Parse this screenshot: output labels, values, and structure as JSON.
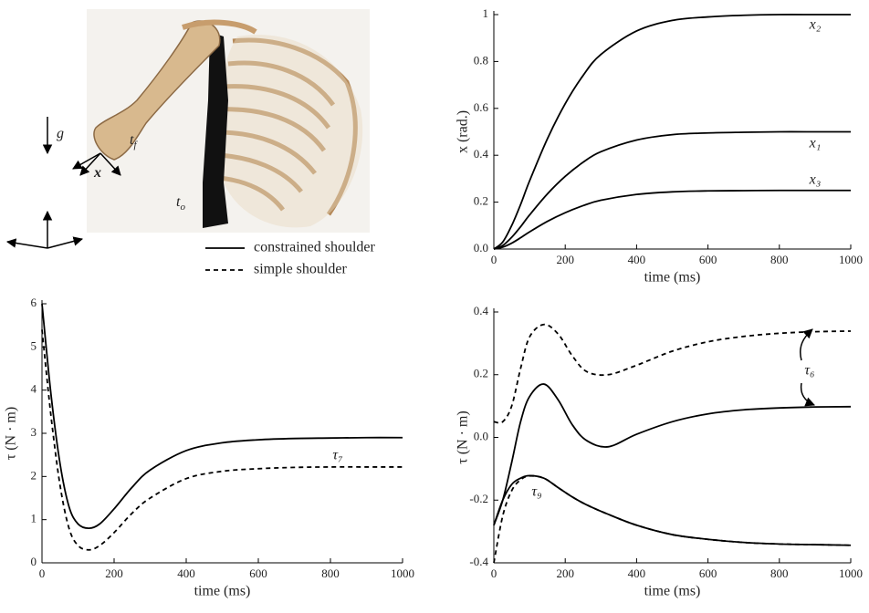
{
  "illustration": {
    "labels": [
      {
        "base": "g",
        "sub": ""
      },
      {
        "base": "t",
        "sub": "f"
      },
      {
        "base": "x",
        "sub": ""
      },
      {
        "base": "t",
        "sub": "o"
      }
    ]
  },
  "chart_data": [
    {
      "type": "line",
      "ylabel": "x (rad.)",
      "xlabel": "time (ms)",
      "color": "#000000",
      "x": [
        0,
        25,
        50,
        75,
        100,
        150,
        200,
        250,
        300,
        400,
        500,
        600,
        700,
        800,
        900,
        1000
      ],
      "series": [
        {
          "name": "x₂",
          "line_style": "solid",
          "values": [
            0,
            0.03,
            0.1,
            0.19,
            0.29,
            0.47,
            0.62,
            0.74,
            0.83,
            0.93,
            0.975,
            0.99,
            0.997,
            1,
            1,
            1
          ]
        },
        {
          "name": "x₁",
          "line_style": "solid",
          "values": [
            0,
            0.015,
            0.05,
            0.095,
            0.145,
            0.235,
            0.31,
            0.37,
            0.415,
            0.465,
            0.488,
            0.495,
            0.498,
            0.5,
            0.5,
            0.5
          ]
        },
        {
          "name": "x₃",
          "line_style": "solid",
          "values": [
            0,
            0.008,
            0.025,
            0.048,
            0.073,
            0.118,
            0.155,
            0.185,
            0.208,
            0.233,
            0.244,
            0.248,
            0.249,
            0.25,
            0.25,
            0.25
          ]
        }
      ],
      "xlim": [
        0,
        1000
      ],
      "xticks": [
        0,
        200,
        400,
        600,
        800,
        1000
      ],
      "ylim": [
        0,
        1
      ],
      "yticks": [
        {
          "value": 0,
          "label": "0.0"
        },
        0.2,
        0.4,
        0.6,
        0.8,
        1
      ]
    },
    {
      "type": "line",
      "ylabel": "τ (N · m)",
      "xlabel": "time (ms)",
      "color": "#000000",
      "legend": true,
      "annotations": [
        "τ₇"
      ],
      "x": [
        0,
        25,
        50,
        75,
        100,
        130,
        160,
        200,
        250,
        300,
        400,
        500,
        600,
        700,
        800,
        900,
        1000
      ],
      "series": [
        {
          "name": "constrained shoulder",
          "line_style": "solid",
          "values": [
            6,
            3.9,
            2.3,
            1.3,
            0.9,
            0.8,
            0.9,
            1.25,
            1.75,
            2.15,
            2.6,
            2.78,
            2.85,
            2.88,
            2.89,
            2.9,
            2.9
          ]
        },
        {
          "name": "simple shoulder",
          "line_style": "dashed",
          "values": [
            5.4,
            3.4,
            1.8,
            0.8,
            0.4,
            0.3,
            0.4,
            0.7,
            1.15,
            1.5,
            1.95,
            2.12,
            2.18,
            2.21,
            2.22,
            2.22,
            2.22
          ]
        }
      ],
      "xlim": [
        0,
        1000
      ],
      "xticks": [
        0,
        200,
        400,
        600,
        800,
        1000
      ],
      "ylim": [
        0,
        6
      ],
      "yticks": [
        0,
        1,
        2,
        3,
        4,
        5,
        6
      ]
    },
    {
      "type": "line",
      "ylabel": "τ (N · m)",
      "xlabel": "time (ms)",
      "color": "#000000",
      "annotations": [
        "τ₆",
        "τ₉"
      ],
      "x": [
        0,
        25,
        50,
        75,
        100,
        140,
        180,
        220,
        260,
        320,
        400,
        500,
        600,
        700,
        800,
        900,
        1000
      ],
      "series": [
        {
          "line_style": "solid",
          "values": [
            -0.28,
            -0.2,
            -0.08,
            0.05,
            0.13,
            0.17,
            0.12,
            0.04,
            -0.01,
            -0.03,
            0.01,
            0.05,
            0.075,
            0.088,
            0.094,
            0.097,
            0.098
          ]
        },
        {
          "line_style": "dashed",
          "values": [
            0.05,
            0.05,
            0.1,
            0.22,
            0.32,
            0.36,
            0.33,
            0.26,
            0.21,
            0.2,
            0.23,
            0.275,
            0.305,
            0.322,
            0.332,
            0.337,
            0.339
          ]
        },
        {
          "line_style": "solid",
          "values": [
            -0.28,
            -0.2,
            -0.15,
            -0.13,
            -0.122,
            -0.13,
            -0.16,
            -0.19,
            -0.215,
            -0.245,
            -0.28,
            -0.31,
            -0.325,
            -0.335,
            -0.34,
            -0.342,
            -0.344
          ]
        },
        {
          "line_style": "dashed",
          "values": [
            -0.4,
            -0.25,
            -0.17,
            -0.135,
            -0.123,
            -0.13,
            -0.16,
            -0.19,
            -0.215,
            -0.245,
            -0.28,
            -0.31,
            -0.325,
            -0.335,
            -0.34,
            -0.342,
            -0.344
          ]
        }
      ],
      "xlim": [
        0,
        1000
      ],
      "xticks": [
        0,
        200,
        400,
        600,
        800,
        1000
      ],
      "ylim": [
        -0.4,
        0.4
      ],
      "yticks": [
        -0.4,
        -0.2,
        {
          "value": 0,
          "label": "0.0"
        },
        0.2,
        0.4
      ]
    }
  ]
}
